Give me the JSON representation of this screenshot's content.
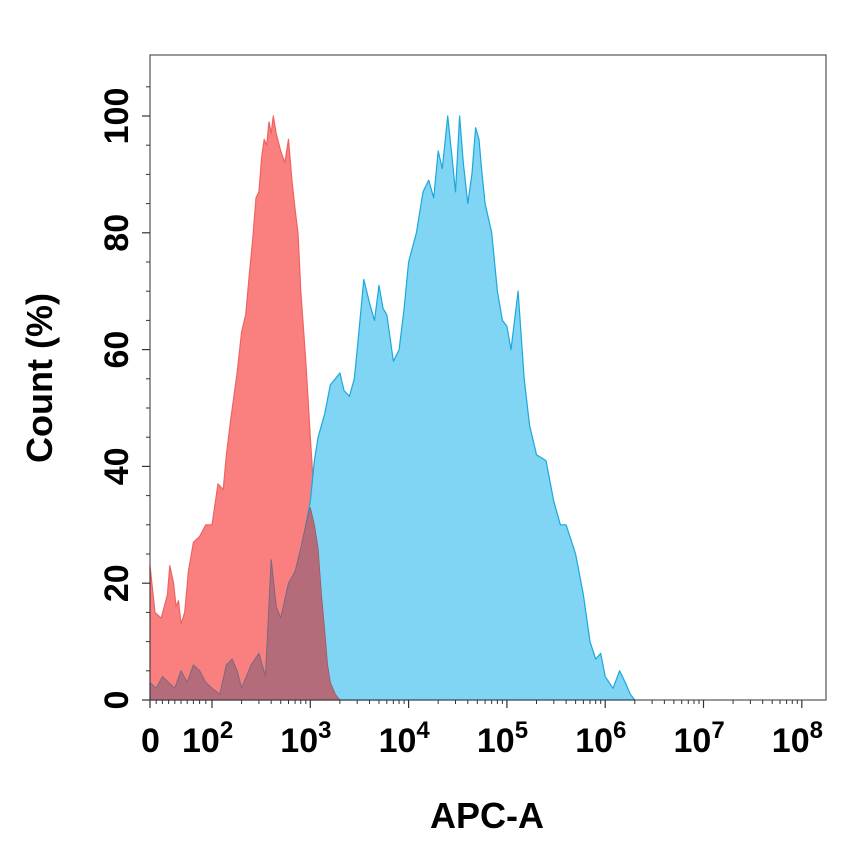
{
  "chart_data": {
    "type": "area",
    "title": "",
    "xlabel": "APC-A",
    "ylabel": "Count  (%)",
    "x_scale": "biexponential",
    "xlim": [
      0,
      100000000
    ],
    "ylim": [
      0,
      110
    ],
    "grid": false,
    "x_tick_labels": [
      {
        "base": "0",
        "exp": ""
      },
      {
        "base": "10",
        "exp": "2"
      },
      {
        "base": "10",
        "exp": "3"
      },
      {
        "base": "10",
        "exp": "4"
      },
      {
        "base": "10",
        "exp": "5"
      },
      {
        "base": "10",
        "exp": "6"
      },
      {
        "base": "10",
        "exp": "7"
      },
      {
        "base": "10",
        "exp": "8"
      }
    ],
    "y_tick_labels": [
      "0",
      "20",
      "40",
      "60",
      "80",
      "100"
    ],
    "series": [
      {
        "color": "#f06262",
        "fill": "#fa8080",
        "points": [
          [
            0,
            23
          ],
          [
            8,
            15
          ],
          [
            18,
            14
          ],
          [
            28,
            18
          ],
          [
            32,
            23
          ],
          [
            38,
            20
          ],
          [
            42,
            16
          ],
          [
            46,
            17
          ],
          [
            50,
            13
          ],
          [
            56,
            15
          ],
          [
            62,
            22
          ],
          [
            70,
            27
          ],
          [
            80,
            28
          ],
          [
            90,
            30
          ],
          [
            100,
            30
          ],
          [
            115,
            37
          ],
          [
            130,
            36
          ],
          [
            140,
            42
          ],
          [
            155,
            48
          ],
          [
            170,
            53
          ],
          [
            180,
            56
          ],
          [
            200,
            63
          ],
          [
            220,
            66
          ],
          [
            240,
            73
          ],
          [
            260,
            79
          ],
          [
            280,
            86
          ],
          [
            300,
            87
          ],
          [
            320,
            93
          ],
          [
            340,
            96
          ],
          [
            360,
            95
          ],
          [
            380,
            99
          ],
          [
            400,
            97
          ],
          [
            420,
            100
          ],
          [
            450,
            97
          ],
          [
            500,
            94
          ],
          [
            550,
            92
          ],
          [
            600,
            96
          ],
          [
            650,
            89
          ],
          [
            700,
            84
          ],
          [
            750,
            80
          ],
          [
            800,
            70
          ],
          [
            900,
            58
          ],
          [
            1000,
            45
          ],
          [
            1100,
            34
          ],
          [
            1200,
            26
          ],
          [
            1300,
            18
          ],
          [
            1400,
            12
          ],
          [
            1500,
            6
          ],
          [
            1600,
            3
          ],
          [
            1800,
            1
          ],
          [
            2000,
            0
          ],
          [
            3000,
            0
          ],
          [
            5000,
            0
          ],
          [
            8000,
            0
          ]
        ]
      },
      {
        "color": "#1ba8db",
        "fill": "#7fd5f3",
        "points": [
          [
            0,
            3
          ],
          [
            10,
            2
          ],
          [
            20,
            4
          ],
          [
            30,
            3
          ],
          [
            40,
            2
          ],
          [
            50,
            5
          ],
          [
            60,
            3
          ],
          [
            70,
            6
          ],
          [
            80,
            5
          ],
          [
            90,
            3
          ],
          [
            100,
            2
          ],
          [
            120,
            1
          ],
          [
            140,
            6
          ],
          [
            160,
            7
          ],
          [
            180,
            5
          ],
          [
            200,
            2
          ],
          [
            250,
            6
          ],
          [
            300,
            8
          ],
          [
            350,
            4
          ],
          [
            400,
            24
          ],
          [
            450,
            16
          ],
          [
            500,
            14
          ],
          [
            600,
            20
          ],
          [
            700,
            22
          ],
          [
            800,
            26
          ],
          [
            900,
            30
          ],
          [
            1000,
            34
          ],
          [
            1100,
            41
          ],
          [
            1200,
            45
          ],
          [
            1400,
            49
          ],
          [
            1600,
            54
          ],
          [
            1800,
            55
          ],
          [
            2000,
            56
          ],
          [
            2200,
            53
          ],
          [
            2500,
            52
          ],
          [
            2800,
            55
          ],
          [
            3000,
            60
          ],
          [
            3500,
            72
          ],
          [
            4000,
            68
          ],
          [
            4500,
            65
          ],
          [
            5000,
            71
          ],
          [
            5500,
            67
          ],
          [
            6000,
            66
          ],
          [
            7000,
            58
          ],
          [
            8000,
            60
          ],
          [
            9000,
            67
          ],
          [
            10000,
            75
          ],
          [
            12000,
            80
          ],
          [
            14000,
            87
          ],
          [
            16000,
            89
          ],
          [
            18000,
            86
          ],
          [
            20000,
            94
          ],
          [
            22000,
            91
          ],
          [
            25000,
            100
          ],
          [
            28000,
            92
          ],
          [
            30000,
            87
          ],
          [
            33000,
            100
          ],
          [
            36000,
            92
          ],
          [
            40000,
            85
          ],
          [
            44000,
            90
          ],
          [
            48000,
            98
          ],
          [
            52000,
            96
          ],
          [
            56000,
            90
          ],
          [
            60000,
            85
          ],
          [
            70000,
            80
          ],
          [
            80000,
            70
          ],
          [
            90000,
            65
          ],
          [
            100000,
            64
          ],
          [
            110000,
            60
          ],
          [
            130000,
            70
          ],
          [
            150000,
            55
          ],
          [
            170000,
            47
          ],
          [
            200000,
            42
          ],
          [
            250000,
            41
          ],
          [
            300000,
            34
          ],
          [
            350000,
            30
          ],
          [
            400000,
            30
          ],
          [
            500000,
            25
          ],
          [
            600000,
            18
          ],
          [
            700000,
            10
          ],
          [
            800000,
            7
          ],
          [
            900000,
            8
          ],
          [
            1000000,
            4
          ],
          [
            1200000,
            2
          ],
          [
            1400000,
            5
          ],
          [
            1600000,
            3
          ],
          [
            1800000,
            1
          ],
          [
            2000000,
            0
          ]
        ]
      },
      {
        "color": "#9a5a66",
        "fill": "#b56c7a",
        "points": [
          [
            0,
            3
          ],
          [
            10,
            2
          ],
          [
            20,
            4
          ],
          [
            30,
            3
          ],
          [
            40,
            2
          ],
          [
            50,
            5
          ],
          [
            60,
            3
          ],
          [
            70,
            6
          ],
          [
            80,
            5
          ],
          [
            90,
            3
          ],
          [
            100,
            2
          ],
          [
            120,
            1
          ],
          [
            140,
            6
          ],
          [
            160,
            7
          ],
          [
            180,
            5
          ],
          [
            200,
            2
          ],
          [
            250,
            6
          ],
          [
            300,
            8
          ],
          [
            350,
            4
          ],
          [
            400,
            24
          ],
          [
            450,
            16
          ],
          [
            500,
            14
          ],
          [
            600,
            20
          ],
          [
            700,
            22
          ],
          [
            800,
            26
          ],
          [
            900,
            30
          ],
          [
            1000,
            33
          ],
          [
            1100,
            30
          ],
          [
            1200,
            26
          ],
          [
            1300,
            18
          ],
          [
            1400,
            12
          ],
          [
            1500,
            6
          ],
          [
            1600,
            3
          ],
          [
            1800,
            1
          ],
          [
            2000,
            0
          ]
        ]
      }
    ]
  }
}
